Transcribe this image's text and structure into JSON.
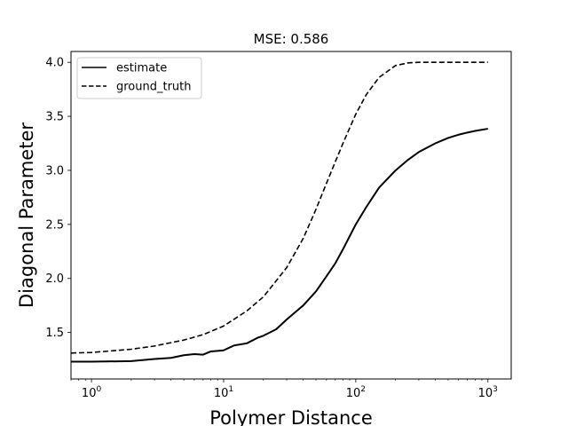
{
  "chart_data": {
    "type": "line",
    "title": "MSE: 0.586",
    "xlabel": "Polymer Distance",
    "ylabel": "Diagonal Parameter",
    "xscale": "log",
    "xlim": [
      0.7,
      1500
    ],
    "ylim": [
      1.07,
      4.1
    ],
    "grid": false,
    "legend_position": "top-left",
    "xticks": [
      {
        "value": 1,
        "base": "10",
        "exp": "0"
      },
      {
        "value": 10,
        "base": "10",
        "exp": "1"
      },
      {
        "value": 100,
        "base": "10",
        "exp": "2"
      },
      {
        "value": 1000,
        "base": "10",
        "exp": "3"
      }
    ],
    "yticks": [
      {
        "value": 1.5,
        "label": "1.5"
      },
      {
        "value": 2.0,
        "label": "2.0"
      },
      {
        "value": 2.5,
        "label": "2.5"
      },
      {
        "value": 3.0,
        "label": "3.0"
      },
      {
        "value": 3.5,
        "label": "3.5"
      },
      {
        "value": 4.0,
        "label": "4.0"
      }
    ],
    "series": [
      {
        "name": "estimate",
        "style": "solid",
        "color": "#000000",
        "x": [
          0.7,
          1,
          2,
          3,
          4,
          5,
          6,
          7,
          8,
          9,
          10,
          12,
          15,
          18,
          20,
          25,
          30,
          35,
          40,
          50,
          60,
          70,
          80,
          100,
          120,
          150,
          200,
          250,
          300,
          400,
          500,
          600,
          700,
          800,
          1000
        ],
        "y": [
          1.23,
          1.23,
          1.235,
          1.255,
          1.265,
          1.29,
          1.3,
          1.295,
          1.325,
          1.33,
          1.335,
          1.38,
          1.4,
          1.45,
          1.47,
          1.53,
          1.62,
          1.69,
          1.75,
          1.88,
          2.02,
          2.14,
          2.27,
          2.5,
          2.66,
          2.84,
          3.0,
          3.1,
          3.17,
          3.25,
          3.3,
          3.33,
          3.35,
          3.365,
          3.385
        ]
      },
      {
        "name": "ground_truth",
        "style": "dashed",
        "color": "#000000",
        "x": [
          0.7,
          1,
          2,
          3,
          5,
          7,
          10,
          15,
          20,
          30,
          40,
          50,
          60,
          70,
          80,
          100,
          120,
          150,
          200,
          250,
          300,
          500,
          1000
        ],
        "y": [
          1.31,
          1.315,
          1.345,
          1.375,
          1.43,
          1.48,
          1.56,
          1.7,
          1.83,
          2.1,
          2.37,
          2.64,
          2.88,
          3.08,
          3.25,
          3.52,
          3.7,
          3.86,
          3.97,
          3.995,
          4.0,
          4.0,
          4.0
        ]
      }
    ]
  }
}
